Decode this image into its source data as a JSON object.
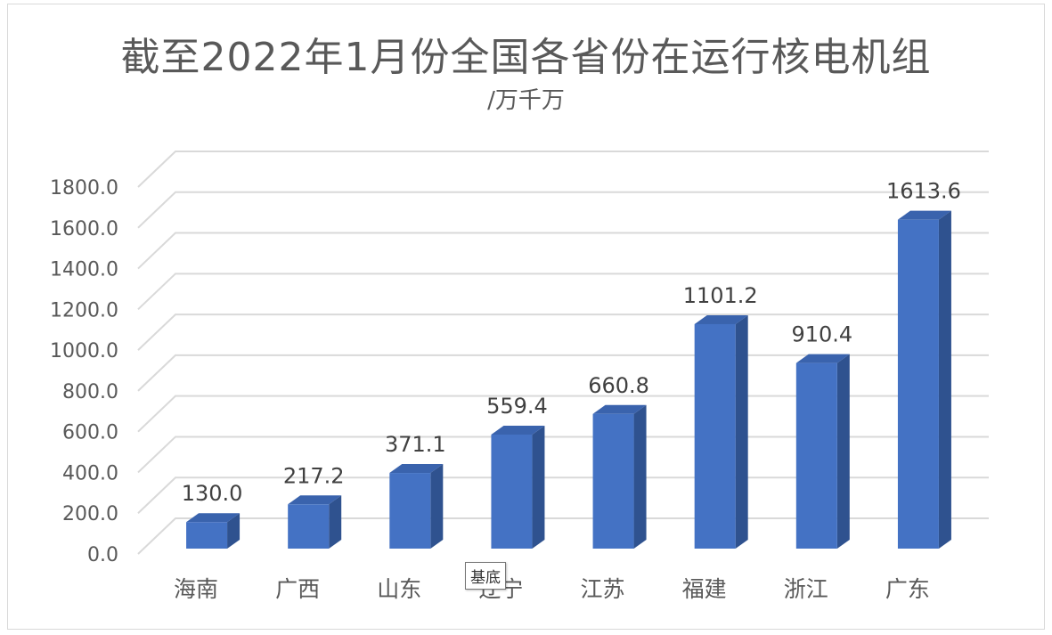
{
  "chart_data": {
    "type": "bar",
    "title": "截至2022年1月份全国各省份在运行核电机组",
    "subtitle": "/万千万",
    "categories": [
      "海南",
      "广西",
      "山东",
      "辽宁",
      "江苏",
      "福建",
      "浙江",
      "广东"
    ],
    "values": [
      130.0,
      217.2,
      371.1,
      559.4,
      660.8,
      1101.2,
      910.4,
      1613.6
    ],
    "value_labels": [
      "130.0",
      "217.2",
      "371.1",
      "559.4",
      "660.8",
      "1101.2",
      "910.4",
      "1613.6"
    ],
    "yticks": [
      "0.0",
      "200.0",
      "400.0",
      "600.0",
      "800.0",
      "1000.0",
      "1200.0",
      "1400.0",
      "1600.0",
      "1800.0"
    ],
    "ylim": [
      0,
      1800
    ],
    "grid": true,
    "legend": "none",
    "bar_color": "#4472c4",
    "bar_side_color": "#2f528f",
    "bar_top_color": "#3a63ad"
  },
  "tooltip": {
    "text": "基底"
  }
}
